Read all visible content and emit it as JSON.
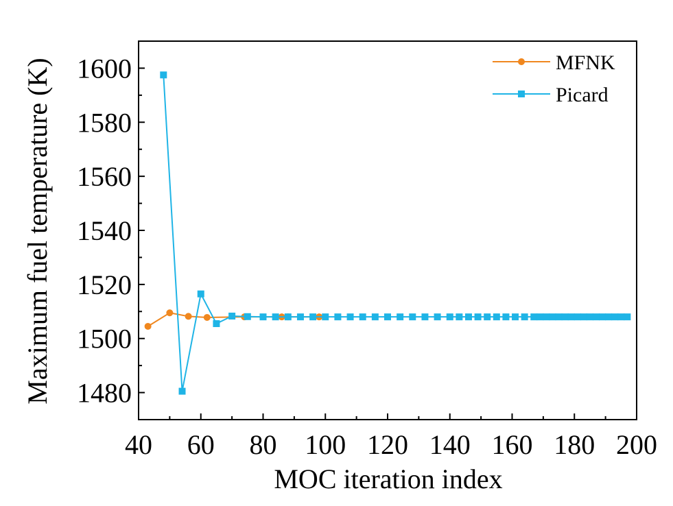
{
  "chart_data": {
    "type": "line",
    "title": "",
    "xlabel": "MOC iteration index",
    "ylabel": "Maximum fuel temperature (K)",
    "xlim": [
      40,
      200
    ],
    "ylim": [
      1470,
      1610
    ],
    "x_ticks": [
      40,
      60,
      80,
      100,
      120,
      140,
      160,
      180,
      200
    ],
    "y_ticks": [
      1480,
      1500,
      1520,
      1540,
      1560,
      1580,
      1600
    ],
    "legend_position": "top-right",
    "series": [
      {
        "name": "MFNK",
        "color": "#f0871e",
        "marker": "circle",
        "x": [
          43,
          50,
          56,
          62,
          74,
          86,
          88,
          98
        ],
        "y": [
          1504.5,
          1509.5,
          1508.2,
          1507.8,
          1508,
          1508,
          1508,
          1508
        ]
      },
      {
        "name": "Picard",
        "color": "#1fb4e6",
        "marker": "square",
        "x": [
          48,
          54,
          60,
          65,
          70,
          75,
          80,
          84,
          88,
          92,
          96,
          100,
          104,
          108,
          112,
          116,
          120,
          124,
          128,
          132,
          136,
          140,
          143,
          146,
          149,
          152,
          155,
          158,
          161,
          164,
          167,
          169,
          171,
          173,
          175,
          177,
          179,
          181,
          183,
          185,
          187,
          189,
          191,
          193,
          195,
          197
        ],
        "y": [
          1597.5,
          1480.5,
          1516.5,
          1505.5,
          1508.3,
          1508.1,
          1508,
          1508,
          1508,
          1508,
          1508,
          1508,
          1508,
          1508,
          1508,
          1508,
          1508,
          1508,
          1508,
          1508,
          1508,
          1508,
          1508,
          1508,
          1508,
          1508,
          1508,
          1508,
          1508,
          1508,
          1508,
          1508,
          1508,
          1508,
          1508,
          1508,
          1508,
          1508,
          1508,
          1508,
          1508,
          1508,
          1508,
          1508,
          1508,
          1508
        ]
      }
    ]
  }
}
